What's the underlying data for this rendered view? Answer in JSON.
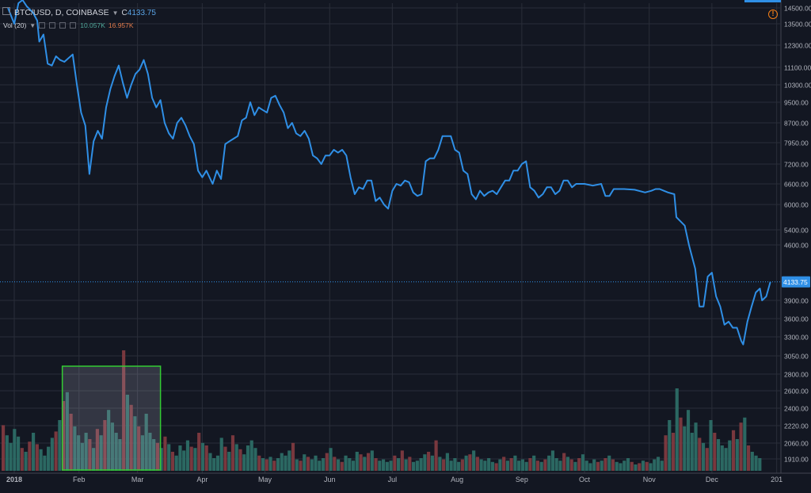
{
  "header": {
    "symbol": "BTC/USD, D, COINBASE",
    "close_prefix": "C",
    "close_value": "4133.75",
    "volume_label": "Vol (20)",
    "volume_value_1": "10.057K",
    "volume_value_2": "16.957K"
  },
  "colors": {
    "background": "#131722",
    "grid": "#2a2e39",
    "price_line": "#2f8fe6",
    "volume_up": "#2c6d66",
    "volume_down": "#7e3a40",
    "selection_border": "#33cc33",
    "price_tag": "#2f8fe6",
    "warning": "#f57f17"
  },
  "icons": {
    "warning": "warning-icon",
    "menu": "square-menu-icon"
  },
  "current_price_tag": "4133.75",
  "chart_data": {
    "type": "line",
    "title": "BTC/USD, D, COINBASE",
    "y_scale": "log",
    "ylim": [
      1910,
      14500
    ],
    "y_ticks": [
      14500,
      13500,
      12300,
      11100,
      10300,
      9500,
      8700,
      7950,
      7200,
      6600,
      6000,
      5400,
      4600,
      3900,
      3600,
      3300,
      3050,
      2800,
      2600,
      2400,
      2220,
      2060,
      1910
    ],
    "y_tick_labels": [
      "14500.00",
      "13500.00",
      "12300.00",
      "11100.00",
      "10300.00",
      "9500.00",
      "8700.00",
      "7950.00",
      "7200.00",
      "6600.00",
      "6000.00",
      "5400.00",
      "4600.00",
      "3900.00",
      "3600.00",
      "3300.00",
      "3050.00",
      "2800.00",
      "2600.00",
      "2400.00",
      "2220.00",
      "2060.00",
      "1910.00"
    ],
    "x_range": [
      "2018-01-01",
      "2018-12-31"
    ],
    "x_ticks": [
      {
        "date": "2018-01-01",
        "label": "2018",
        "bold": true
      },
      {
        "date": "2018-02-01",
        "label": "Feb"
      },
      {
        "date": "2018-03-01",
        "label": "Mar"
      },
      {
        "date": "2018-04-01",
        "label": "Apr"
      },
      {
        "date": "2018-05-01",
        "label": "May"
      },
      {
        "date": "2018-06-01",
        "label": "Jun"
      },
      {
        "date": "2018-07-01",
        "label": "Jul"
      },
      {
        "date": "2018-08-01",
        "label": "Aug"
      },
      {
        "date": "2018-09-01",
        "label": "Sep"
      },
      {
        "date": "2018-10-01",
        "label": "Oct"
      },
      {
        "date": "2018-11-01",
        "label": "Nov"
      },
      {
        "date": "2018-12-01",
        "label": "Dec"
      },
      {
        "date": "2019-01-01",
        "label": "201"
      }
    ],
    "grid": true,
    "series": [
      {
        "values": [
          [
            "2017-12-29",
            14500
          ],
          [
            "2018-01-01",
            13500
          ],
          [
            "2018-01-03",
            14800
          ],
          [
            "2018-01-05",
            15000
          ],
          [
            "2018-01-07",
            14600
          ],
          [
            "2018-01-10",
            14200
          ],
          [
            "2018-01-12",
            13700
          ],
          [
            "2018-01-13",
            12500
          ],
          [
            "2018-01-15",
            12900
          ],
          [
            "2018-01-17",
            11300
          ],
          [
            "2018-01-19",
            11200
          ],
          [
            "2018-01-21",
            11700
          ],
          [
            "2018-01-23",
            11500
          ],
          [
            "2018-01-25",
            11400
          ],
          [
            "2018-01-27",
            11600
          ],
          [
            "2018-01-29",
            11800
          ],
          [
            "2018-01-31",
            10300
          ],
          [
            "2018-02-02",
            9100
          ],
          [
            "2018-02-04",
            8600
          ],
          [
            "2018-02-06",
            6900
          ],
          [
            "2018-02-08",
            8000
          ],
          [
            "2018-02-10",
            8400
          ],
          [
            "2018-02-12",
            8100
          ],
          [
            "2018-02-14",
            9300
          ],
          [
            "2018-02-16",
            10100
          ],
          [
            "2018-02-18",
            10700
          ],
          [
            "2018-02-20",
            11200
          ],
          [
            "2018-02-22",
            10400
          ],
          [
            "2018-02-24",
            9700
          ],
          [
            "2018-02-26",
            10300
          ],
          [
            "2018-02-28",
            10800
          ],
          [
            "2018-03-02",
            11000
          ],
          [
            "2018-03-04",
            11500
          ],
          [
            "2018-03-06",
            10800
          ],
          [
            "2018-03-08",
            9700
          ],
          [
            "2018-03-10",
            9300
          ],
          [
            "2018-03-12",
            9600
          ],
          [
            "2018-03-14",
            8700
          ],
          [
            "2018-03-16",
            8300
          ],
          [
            "2018-03-18",
            8100
          ],
          [
            "2018-03-20",
            8700
          ],
          [
            "2018-03-22",
            8900
          ],
          [
            "2018-03-24",
            8600
          ],
          [
            "2018-03-26",
            8200
          ],
          [
            "2018-03-28",
            7900
          ],
          [
            "2018-03-30",
            7000
          ],
          [
            "2018-04-01",
            6800
          ],
          [
            "2018-04-03",
            7000
          ],
          [
            "2018-04-06",
            6600
          ],
          [
            "2018-04-08",
            7000
          ],
          [
            "2018-04-10",
            6750
          ],
          [
            "2018-04-12",
            7900
          ],
          [
            "2018-04-14",
            8000
          ],
          [
            "2018-04-16",
            8100
          ],
          [
            "2018-04-18",
            8200
          ],
          [
            "2018-04-20",
            8800
          ],
          [
            "2018-04-22",
            8900
          ],
          [
            "2018-04-24",
            9500
          ],
          [
            "2018-04-26",
            9000
          ],
          [
            "2018-04-28",
            9300
          ],
          [
            "2018-04-30",
            9200
          ],
          [
            "2018-05-02",
            9100
          ],
          [
            "2018-05-04",
            9700
          ],
          [
            "2018-05-06",
            9800
          ],
          [
            "2018-05-08",
            9400
          ],
          [
            "2018-05-10",
            9100
          ],
          [
            "2018-05-12",
            8500
          ],
          [
            "2018-05-14",
            8700
          ],
          [
            "2018-05-16",
            8300
          ],
          [
            "2018-05-18",
            8200
          ],
          [
            "2018-05-20",
            8400
          ],
          [
            "2018-05-22",
            8100
          ],
          [
            "2018-05-24",
            7500
          ],
          [
            "2018-05-26",
            7400
          ],
          [
            "2018-05-28",
            7200
          ],
          [
            "2018-05-30",
            7500
          ],
          [
            "2018-06-01",
            7500
          ],
          [
            "2018-06-03",
            7700
          ],
          [
            "2018-06-05",
            7600
          ],
          [
            "2018-06-07",
            7700
          ],
          [
            "2018-06-09",
            7500
          ],
          [
            "2018-06-11",
            6800
          ],
          [
            "2018-06-13",
            6300
          ],
          [
            "2018-06-15",
            6500
          ],
          [
            "2018-06-17",
            6450
          ],
          [
            "2018-06-19",
            6700
          ],
          [
            "2018-06-21",
            6700
          ],
          [
            "2018-06-23",
            6100
          ],
          [
            "2018-06-25",
            6200
          ],
          [
            "2018-06-27",
            6000
          ],
          [
            "2018-06-29",
            5900
          ],
          [
            "2018-07-01",
            6400
          ],
          [
            "2018-07-03",
            6600
          ],
          [
            "2018-07-05",
            6550
          ],
          [
            "2018-07-07",
            6700
          ],
          [
            "2018-07-09",
            6650
          ],
          [
            "2018-07-11",
            6350
          ],
          [
            "2018-07-13",
            6250
          ],
          [
            "2018-07-15",
            6300
          ],
          [
            "2018-07-17",
            7300
          ],
          [
            "2018-07-19",
            7400
          ],
          [
            "2018-07-21",
            7400
          ],
          [
            "2018-07-23",
            7700
          ],
          [
            "2018-07-25",
            8200
          ],
          [
            "2018-07-27",
            8200
          ],
          [
            "2018-07-29",
            8200
          ],
          [
            "2018-07-31",
            7700
          ],
          [
            "2018-08-02",
            7600
          ],
          [
            "2018-08-04",
            7000
          ],
          [
            "2018-08-06",
            6900
          ],
          [
            "2018-08-08",
            6300
          ],
          [
            "2018-08-10",
            6150
          ],
          [
            "2018-08-12",
            6400
          ],
          [
            "2018-08-14",
            6250
          ],
          [
            "2018-08-16",
            6350
          ],
          [
            "2018-08-18",
            6400
          ],
          [
            "2018-08-20",
            6300
          ],
          [
            "2018-08-22",
            6500
          ],
          [
            "2018-08-24",
            6700
          ],
          [
            "2018-08-26",
            6700
          ],
          [
            "2018-08-28",
            7000
          ],
          [
            "2018-08-30",
            7000
          ],
          [
            "2018-09-01",
            7200
          ],
          [
            "2018-09-03",
            7300
          ],
          [
            "2018-09-05",
            6500
          ],
          [
            "2018-09-07",
            6400
          ],
          [
            "2018-09-09",
            6200
          ],
          [
            "2018-09-11",
            6300
          ],
          [
            "2018-09-13",
            6500
          ],
          [
            "2018-09-15",
            6500
          ],
          [
            "2018-09-17",
            6300
          ],
          [
            "2018-09-19",
            6400
          ],
          [
            "2018-09-21",
            6700
          ],
          [
            "2018-09-23",
            6700
          ],
          [
            "2018-09-25",
            6500
          ],
          [
            "2018-09-27",
            6600
          ],
          [
            "2018-10-01",
            6600
          ],
          [
            "2018-10-05",
            6550
          ],
          [
            "2018-10-09",
            6600
          ],
          [
            "2018-10-11",
            6250
          ],
          [
            "2018-10-13",
            6250
          ],
          [
            "2018-10-15",
            6450
          ],
          [
            "2018-10-20",
            6450
          ],
          [
            "2018-10-25",
            6430
          ],
          [
            "2018-10-30",
            6350
          ],
          [
            "2018-11-02",
            6400
          ],
          [
            "2018-11-04",
            6450
          ],
          [
            "2018-11-06",
            6450
          ],
          [
            "2018-11-08",
            6400
          ],
          [
            "2018-11-10",
            6350
          ],
          [
            "2018-11-13",
            6300
          ],
          [
            "2018-11-14",
            5700
          ],
          [
            "2018-11-16",
            5600
          ],
          [
            "2018-11-18",
            5500
          ],
          [
            "2018-11-20",
            4600
          ],
          [
            "2018-11-21",
            4500
          ],
          [
            "2018-11-23",
            4300
          ],
          [
            "2018-11-25",
            3800
          ],
          [
            "2018-11-27",
            3800
          ],
          [
            "2018-11-29",
            4200
          ],
          [
            "2018-12-01",
            4250
          ],
          [
            "2018-12-03",
            3950
          ],
          [
            "2018-12-05",
            3800
          ],
          [
            "2018-12-07",
            3500
          ],
          [
            "2018-12-09",
            3550
          ],
          [
            "2018-12-11",
            3450
          ],
          [
            "2018-12-13",
            3450
          ],
          [
            "2018-12-15",
            3250
          ],
          [
            "2018-12-16",
            3200
          ],
          [
            "2018-12-18",
            3550
          ],
          [
            "2018-12-20",
            3800
          ],
          [
            "2018-12-22",
            4000
          ],
          [
            "2018-12-24",
            4050
          ],
          [
            "2018-12-25",
            3900
          ],
          [
            "2018-12-27",
            3950
          ],
          [
            "2018-12-29",
            4133.75
          ]
        ]
      }
    ],
    "volume": {
      "label": "Vol (20)",
      "relative_heights": [
        0.36,
        0.28,
        0.22,
        0.33,
        0.27,
        0.18,
        0.15,
        0.23,
        0.3,
        0.21,
        0.17,
        0.12,
        0.19,
        0.26,
        0.31,
        0.4,
        0.55,
        0.62,
        0.45,
        0.35,
        0.28,
        0.22,
        0.3,
        0.25,
        0.18,
        0.33,
        0.28,
        0.4,
        0.48,
        0.38,
        0.3,
        0.25,
        0.95,
        0.6,
        0.52,
        0.43,
        0.35,
        0.28,
        0.45,
        0.3,
        0.25,
        0.22,
        0.18,
        0.27,
        0.21,
        0.15,
        0.12,
        0.2,
        0.16,
        0.24,
        0.19,
        0.18,
        0.3,
        0.22,
        0.2,
        0.14,
        0.1,
        0.12,
        0.26,
        0.19,
        0.15,
        0.28,
        0.21,
        0.17,
        0.13,
        0.2,
        0.24,
        0.18,
        0.12,
        0.1,
        0.09,
        0.11,
        0.08,
        0.1,
        0.14,
        0.12,
        0.16,
        0.22,
        0.09,
        0.08,
        0.13,
        0.11,
        0.09,
        0.12,
        0.08,
        0.1,
        0.14,
        0.18,
        0.11,
        0.09,
        0.07,
        0.12,
        0.1,
        0.08,
        0.15,
        0.13,
        0.11,
        0.14,
        0.16,
        0.1,
        0.08,
        0.09,
        0.07,
        0.08,
        0.12,
        0.1,
        0.16,
        0.09,
        0.11,
        0.07,
        0.08,
        0.1,
        0.13,
        0.15,
        0.12,
        0.24,
        0.11,
        0.09,
        0.14,
        0.08,
        0.1,
        0.07,
        0.09,
        0.12,
        0.13,
        0.16,
        0.11,
        0.09,
        0.08,
        0.1,
        0.07,
        0.06,
        0.09,
        0.11,
        0.08,
        0.1,
        0.12,
        0.08,
        0.09,
        0.07,
        0.1,
        0.12,
        0.08,
        0.07,
        0.09,
        0.12,
        0.16,
        0.1,
        0.08,
        0.14,
        0.11,
        0.09,
        0.07,
        0.1,
        0.13,
        0.08,
        0.06,
        0.09,
        0.07,
        0.08,
        0.1,
        0.12,
        0.09,
        0.07,
        0.06,
        0.08,
        0.1,
        0.07,
        0.05,
        0.06,
        0.08,
        0.07,
        0.06,
        0.09,
        0.11,
        0.08,
        0.28,
        0.4,
        0.3,
        0.65,
        0.42,
        0.35,
        0.48,
        0.3,
        0.38,
        0.26,
        0.22,
        0.18,
        0.4,
        0.3,
        0.25,
        0.2,
        0.18,
        0.24,
        0.32,
        0.25,
        0.38,
        0.42,
        0.2,
        0.15,
        0.12,
        0.1
      ],
      "colors_pattern": "alternating"
    },
    "selection_box": {
      "x_range": [
        "2018-01-24",
        "2018-03-12"
      ]
    }
  }
}
